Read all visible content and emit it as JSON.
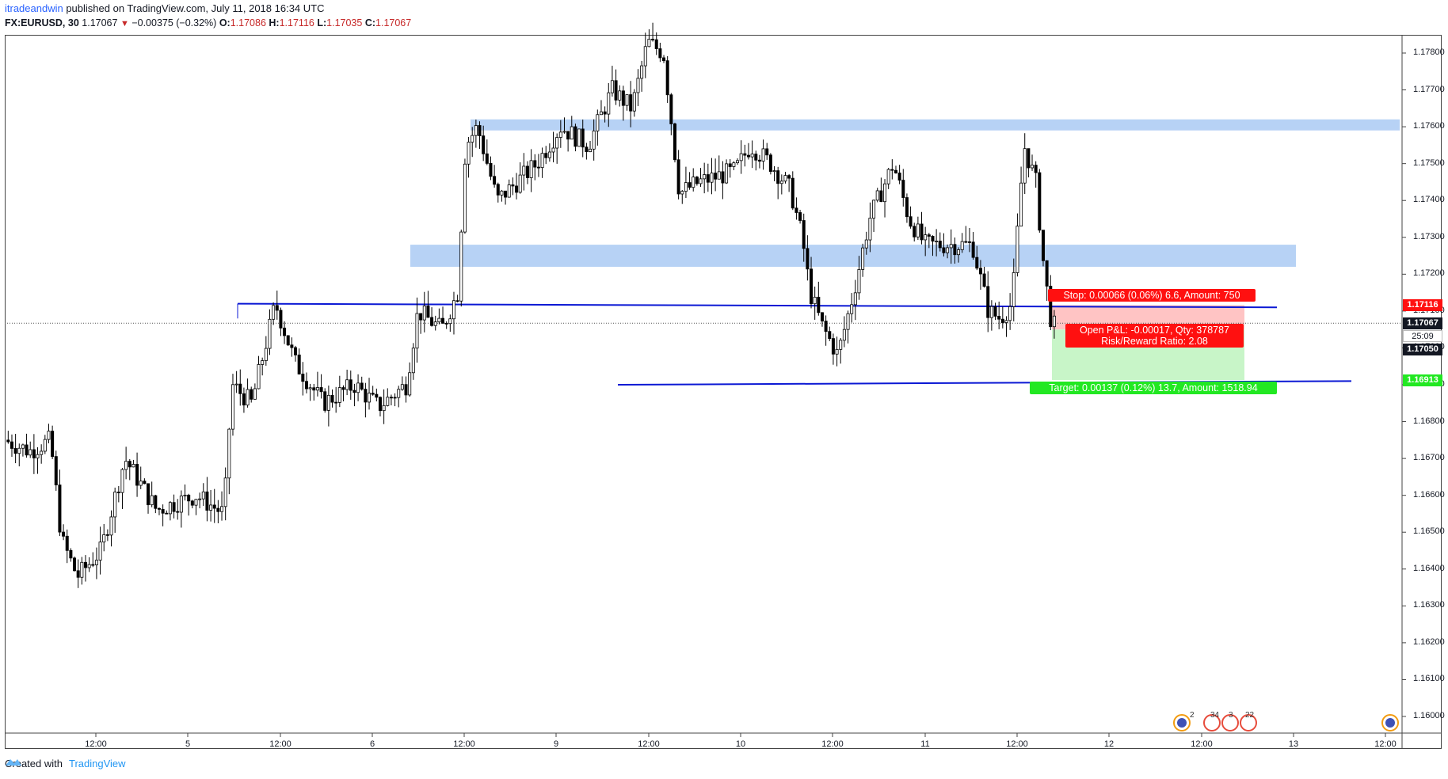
{
  "header": {
    "author": "itradeandwin",
    "published_text": " published on TradingView.com, July 11, 2018 16:34 UTC"
  },
  "symbol_bar": {
    "symbol": "FX:EURUSD, 30",
    "last": "1.17067",
    "change": "−0.00375 (−0.32%)",
    "o_label": "O:",
    "o": "1.17086",
    "h_label": "H:",
    "h": "1.17116",
    "l_label": "L:",
    "l": "1.17035",
    "c_label": "C:",
    "c": "1.17067"
  },
  "price_axis": {
    "ticks": [
      "1.17800",
      "1.17700",
      "1.17600",
      "1.17500",
      "1.17400",
      "1.17300",
      "1.17200",
      "1.17100",
      "1.17000",
      "1.16900",
      "1.16800",
      "1.16700",
      "1.16600",
      "1.16500",
      "1.16400",
      "1.16300",
      "1.16200",
      "1.16100",
      "1.16000"
    ],
    "stop_tag": "1.17116",
    "last_tag": "1.17067",
    "countdown": "25:09",
    "entry_tag": "1.17050",
    "target_tag": "1.16913"
  },
  "time_axis": [
    "12:00",
    "5",
    "12:00",
    "6",
    "12:00",
    "9",
    "12:00",
    "10",
    "12:00",
    "11",
    "12:00",
    "12",
    "12:00",
    "13",
    "12:00"
  ],
  "position": {
    "stop_label": "Stop: 0.00066 (0.06%) 6.6, Amount: 750",
    "pnl_label": "Open P&L: -0.00017, Qty: 378787",
    "rr_label": "Risk/Reward Ratio: 2.08",
    "target_label": "Target: 0.00137 (0.12%) 13.7, Amount: 1518.94"
  },
  "events_dock": {
    "count_a": "2",
    "count_b": "34",
    "count_c": "3",
    "count_d": "22"
  },
  "footer": {
    "created_with": "Created with",
    "brand": "TradingView"
  },
  "colors": {
    "up": "#ffffff",
    "down": "#000000",
    "zone": "#b7d2f5",
    "trendline": "#0b18d4",
    "stop": "#ff1010",
    "target": "#22e822"
  },
  "chart_data": {
    "type": "candlestick",
    "symbol": "FX:EURUSD",
    "interval": "30",
    "ylim": [
      1.1595,
      1.1785
    ],
    "zones": [
      {
        "from": 1.1759,
        "to": 1.1762
      },
      {
        "from": 1.1722,
        "to": 1.1728
      }
    ],
    "trendlines": [
      {
        "level_start": 1.1712,
        "level_end": 1.1711
      },
      {
        "level_start": 1.169,
        "level_end": 1.1691
      }
    ],
    "position": {
      "entry": 1.1705,
      "stop": 1.17116,
      "target": 1.16913,
      "last": 1.17067
    }
  }
}
